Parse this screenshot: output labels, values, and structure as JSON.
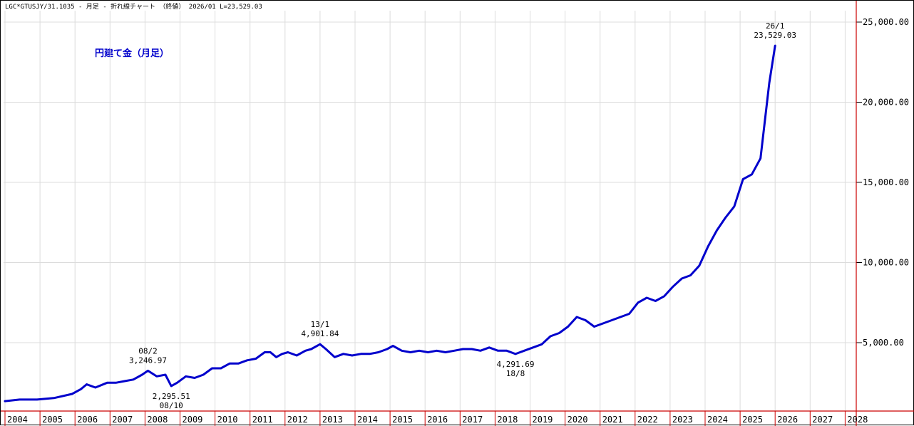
{
  "header": "LGC*GTUSJY/31.1035 - 月足 - 折れ線チャート （終値） 2026/01 L=23,529.03",
  "chart_data": {
    "type": "line",
    "title": "円建て金（月足）",
    "xlabel": "",
    "ylabel": "",
    "xlim": [
      2004,
      2028
    ],
    "ylim": [
      0,
      26000
    ],
    "grid": true,
    "color": "#0000cc",
    "x_ticks": [
      "2004",
      "2005",
      "2006",
      "2007",
      "2008",
      "2009",
      "2010",
      "2011",
      "2012",
      "2013",
      "2014",
      "2015",
      "2016",
      "2017",
      "2018",
      "2019",
      "2020",
      "2021",
      "2022",
      "2023",
      "2024",
      "2025",
      "2026",
      "2027",
      "2028"
    ],
    "y_ticks": [
      {
        "value": 5000,
        "label": "5,000.00"
      },
      {
        "value": 10000,
        "label": "10,000.00"
      },
      {
        "value": 15000,
        "label": "15,000.00"
      },
      {
        "value": 20000,
        "label": "20,000.00"
      },
      {
        "value": 25000,
        "label": "25,000.00"
      }
    ],
    "series": [
      {
        "x": [
          "2004-01",
          "2004-06",
          "2004-12",
          "2005-06",
          "2005-12",
          "2006-03",
          "2006-05",
          "2006-08",
          "2006-12",
          "2007-03",
          "2007-06",
          "2007-09",
          "2007-12",
          "2008-02",
          "2008-05",
          "2008-08",
          "2008-10",
          "2008-12",
          "2009-03",
          "2009-06",
          "2009-09",
          "2009-12",
          "2010-03",
          "2010-06",
          "2010-09",
          "2010-12",
          "2011-03",
          "2011-06",
          "2011-08",
          "2011-10",
          "2011-12",
          "2012-02",
          "2012-05",
          "2012-08",
          "2012-10",
          "2013-01",
          "2013-03",
          "2013-06",
          "2013-09",
          "2013-12",
          "2014-03",
          "2014-06",
          "2014-09",
          "2014-12",
          "2015-02",
          "2015-05",
          "2015-08",
          "2015-11",
          "2016-02",
          "2016-05",
          "2016-08",
          "2016-11",
          "2017-02",
          "2017-05",
          "2017-08",
          "2017-11",
          "2018-02",
          "2018-05",
          "2018-08",
          "2018-11",
          "2019-02",
          "2019-05",
          "2019-08",
          "2019-11",
          "2020-02",
          "2020-05",
          "2020-08",
          "2020-11",
          "2021-02",
          "2021-05",
          "2021-08",
          "2021-11",
          "2022-02",
          "2022-05",
          "2022-08",
          "2022-11",
          "2023-02",
          "2023-05",
          "2023-08",
          "2023-11",
          "2024-02",
          "2024-05",
          "2024-08",
          "2024-11",
          "2025-02",
          "2025-05",
          "2025-08",
          "2025-11",
          "2026-01"
        ],
        "values": [
          1350,
          1450,
          1450,
          1550,
          1800,
          2100,
          2400,
          2200,
          2500,
          2500,
          2600,
          2700,
          3000,
          3246.97,
          2900,
          3000,
          2295.51,
          2500,
          2900,
          2800,
          3000,
          3400,
          3400,
          3700,
          3700,
          3900,
          4000,
          4400,
          4400,
          4100,
          4300,
          4400,
          4200,
          4500,
          4600,
          4901.84,
          4600,
          4100,
          4300,
          4200,
          4300,
          4300,
          4400,
          4600,
          4800,
          4500,
          4400,
          4500,
          4400,
          4500,
          4400,
          4500,
          4600,
          4600,
          4500,
          4700,
          4500,
          4500,
          4291.69,
          4500,
          4700,
          4900,
          5400,
          5600,
          6000,
          6600,
          6400,
          6000,
          6200,
          6400,
          6600,
          6800,
          7500,
          7800,
          7600,
          7900,
          8500,
          9000,
          9200,
          9800,
          11000,
          12000,
          12800,
          13500,
          15200,
          15500,
          16500,
          21200,
          23529.03
        ]
      }
    ],
    "annotations": [
      {
        "date": "2008-02",
        "value": 3246.97,
        "label": "08/2",
        "value_label": "3,246.97",
        "position": "above"
      },
      {
        "date": "2008-10",
        "value": 2295.51,
        "label": "08/10",
        "value_label": "2,295.51",
        "position": "below"
      },
      {
        "date": "2013-01",
        "value": 4901.84,
        "label": "13/1",
        "value_label": "4,901.84",
        "position": "above"
      },
      {
        "date": "2018-08",
        "value": 4291.69,
        "label": "18/8",
        "value_label": "4,291.69",
        "position": "below"
      },
      {
        "date": "2026-01",
        "value": 23529.03,
        "label": "26/1",
        "value_label": "23,529.03",
        "position": "above"
      }
    ]
  }
}
